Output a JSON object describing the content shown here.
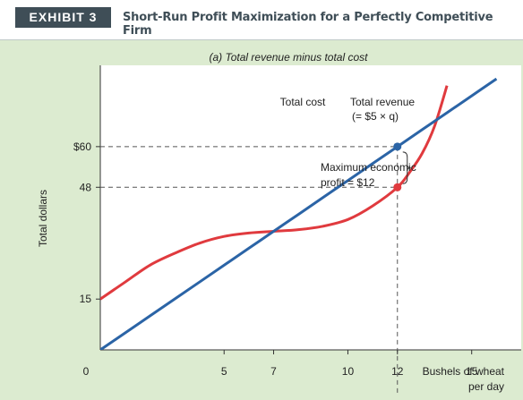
{
  "header": {
    "exhibit_label": "EXHIBIT 3",
    "title": "Short-Run Profit Maximization for a Perfectly Competitive Firm"
  },
  "colors": {
    "header_tag_bg": "#3f4e57",
    "panel_bg": "#dcebd0",
    "total_revenue": "#2b64a6",
    "total_cost": "#e03a3e"
  },
  "chart_data": {
    "type": "line",
    "title": "(a) Total revenue minus total cost",
    "xlabel_lines": [
      "Bushels of wheat",
      "per day"
    ],
    "ylabel": "Total dollars",
    "xlim": [
      0,
      17
    ],
    "ylim": [
      0,
      84
    ],
    "x_ticks": [
      {
        "value": 0,
        "label": "0"
      },
      {
        "value": 5,
        "label": "5"
      },
      {
        "value": 7,
        "label": "7"
      },
      {
        "value": 10,
        "label": "10"
      },
      {
        "value": 12,
        "label": "12"
      },
      {
        "value": 15,
        "label": "15"
      }
    ],
    "y_ticks": [
      {
        "value": 15,
        "label": "15"
      },
      {
        "value": 48,
        "label": "48"
      },
      {
        "value": 60,
        "label": "$60"
      }
    ],
    "series": [
      {
        "name": "Total revenue",
        "label_lines": [
          "Total revenue",
          "(= $5 × q)"
        ],
        "color": "#2b64a6",
        "x": [
          0,
          1,
          2,
          3,
          4,
          5,
          6,
          7,
          8,
          9,
          10,
          11,
          12,
          13,
          14,
          15,
          16
        ],
        "y": [
          0,
          5,
          10,
          15,
          20,
          25,
          30,
          35,
          40,
          45,
          50,
          55,
          60,
          65,
          70,
          75,
          80
        ]
      },
      {
        "name": "Total cost",
        "label_lines": [
          "Total cost"
        ],
        "color": "#e03a3e",
        "x": [
          0,
          1,
          2,
          3,
          4,
          5,
          6,
          7,
          8,
          9,
          10,
          11,
          12,
          12.5,
          13,
          13.5,
          14
        ],
        "y": [
          15,
          20,
          25,
          28.5,
          31.5,
          33.5,
          34.5,
          35,
          35.5,
          36.5,
          38.5,
          42.5,
          48,
          52.5,
          58,
          66,
          78
        ]
      }
    ],
    "highlight_points": [
      {
        "series": "Total revenue",
        "x": 12,
        "y": 60
      },
      {
        "series": "Total cost",
        "x": 12,
        "y": 48
      }
    ],
    "annotation": {
      "lines": [
        "Maximum economic",
        "profit = $12"
      ],
      "x": 12,
      "y_from": 48,
      "y_to": 60
    },
    "reference_lines": {
      "horizontal": [
        60,
        48
      ],
      "vertical": [
        12
      ]
    }
  }
}
